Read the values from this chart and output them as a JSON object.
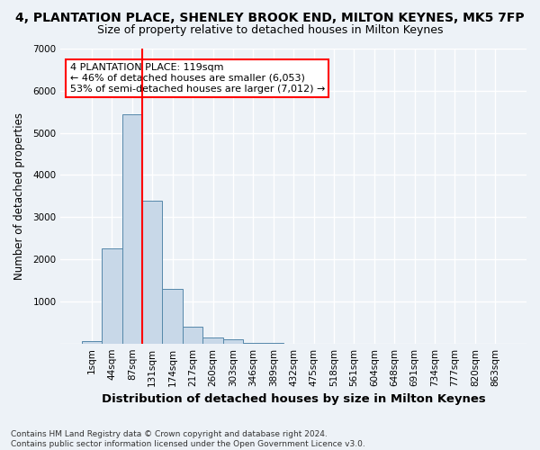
{
  "title1": "4, PLANTATION PLACE, SHENLEY BROOK END, MILTON KEYNES, MK5 7FP",
  "title2": "Size of property relative to detached houses in Milton Keynes",
  "xlabel": "Distribution of detached houses by size in Milton Keynes",
  "ylabel": "Number of detached properties",
  "footnote": "Contains HM Land Registry data © Crown copyright and database right 2024.\nContains public sector information licensed under the Open Government Licence v3.0.",
  "bin_labels": [
    "1sqm",
    "44sqm",
    "87sqm",
    "131sqm",
    "174sqm",
    "217sqm",
    "260sqm",
    "303sqm",
    "346sqm",
    "389sqm",
    "432sqm",
    "475sqm",
    "518sqm",
    "561sqm",
    "604sqm",
    "648sqm",
    "691sqm",
    "734sqm",
    "777sqm",
    "820sqm",
    "863sqm"
  ],
  "bar_heights": [
    50,
    2250,
    5450,
    3400,
    1300,
    400,
    150,
    100,
    20,
    10,
    0,
    0,
    0,
    0,
    0,
    0,
    0,
    0,
    0,
    0,
    0
  ],
  "bar_color": "#c8d8e8",
  "bar_edge_color": "#5588aa",
  "red_line_x": 2.5,
  "annotation_text": "4 PLANTATION PLACE: 119sqm\n← 46% of detached houses are smaller (6,053)\n53% of semi-detached houses are larger (7,012) →",
  "annotation_box_color": "white",
  "annotation_box_edge_color": "red",
  "red_line_color": "red",
  "ylim": [
    0,
    7000
  ],
  "yticks": [
    0,
    1000,
    2000,
    3000,
    4000,
    5000,
    6000,
    7000
  ],
  "background_color": "#edf2f7",
  "grid_color": "white",
  "title1_fontsize": 10,
  "title2_fontsize": 9,
  "xlabel_fontsize": 9.5,
  "ylabel_fontsize": 8.5,
  "tick_fontsize": 7.5,
  "annotation_fontsize": 8,
  "footnote_fontsize": 6.5
}
